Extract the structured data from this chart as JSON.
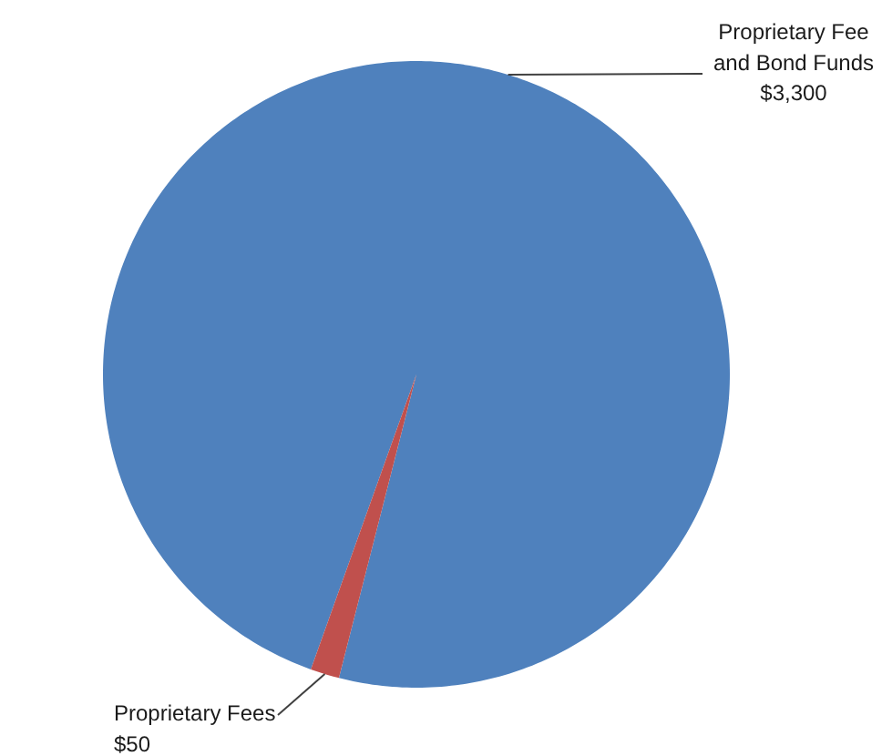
{
  "chart_data": {
    "type": "pie",
    "categories": [
      "Proprietary Fee and Bond Funds",
      "Proprietary Fees"
    ],
    "values": [
      3300,
      50
    ],
    "colors": [
      "#4f81bd",
      "#c0504d"
    ],
    "value_labels": [
      "$3,300",
      "$50"
    ]
  }
}
